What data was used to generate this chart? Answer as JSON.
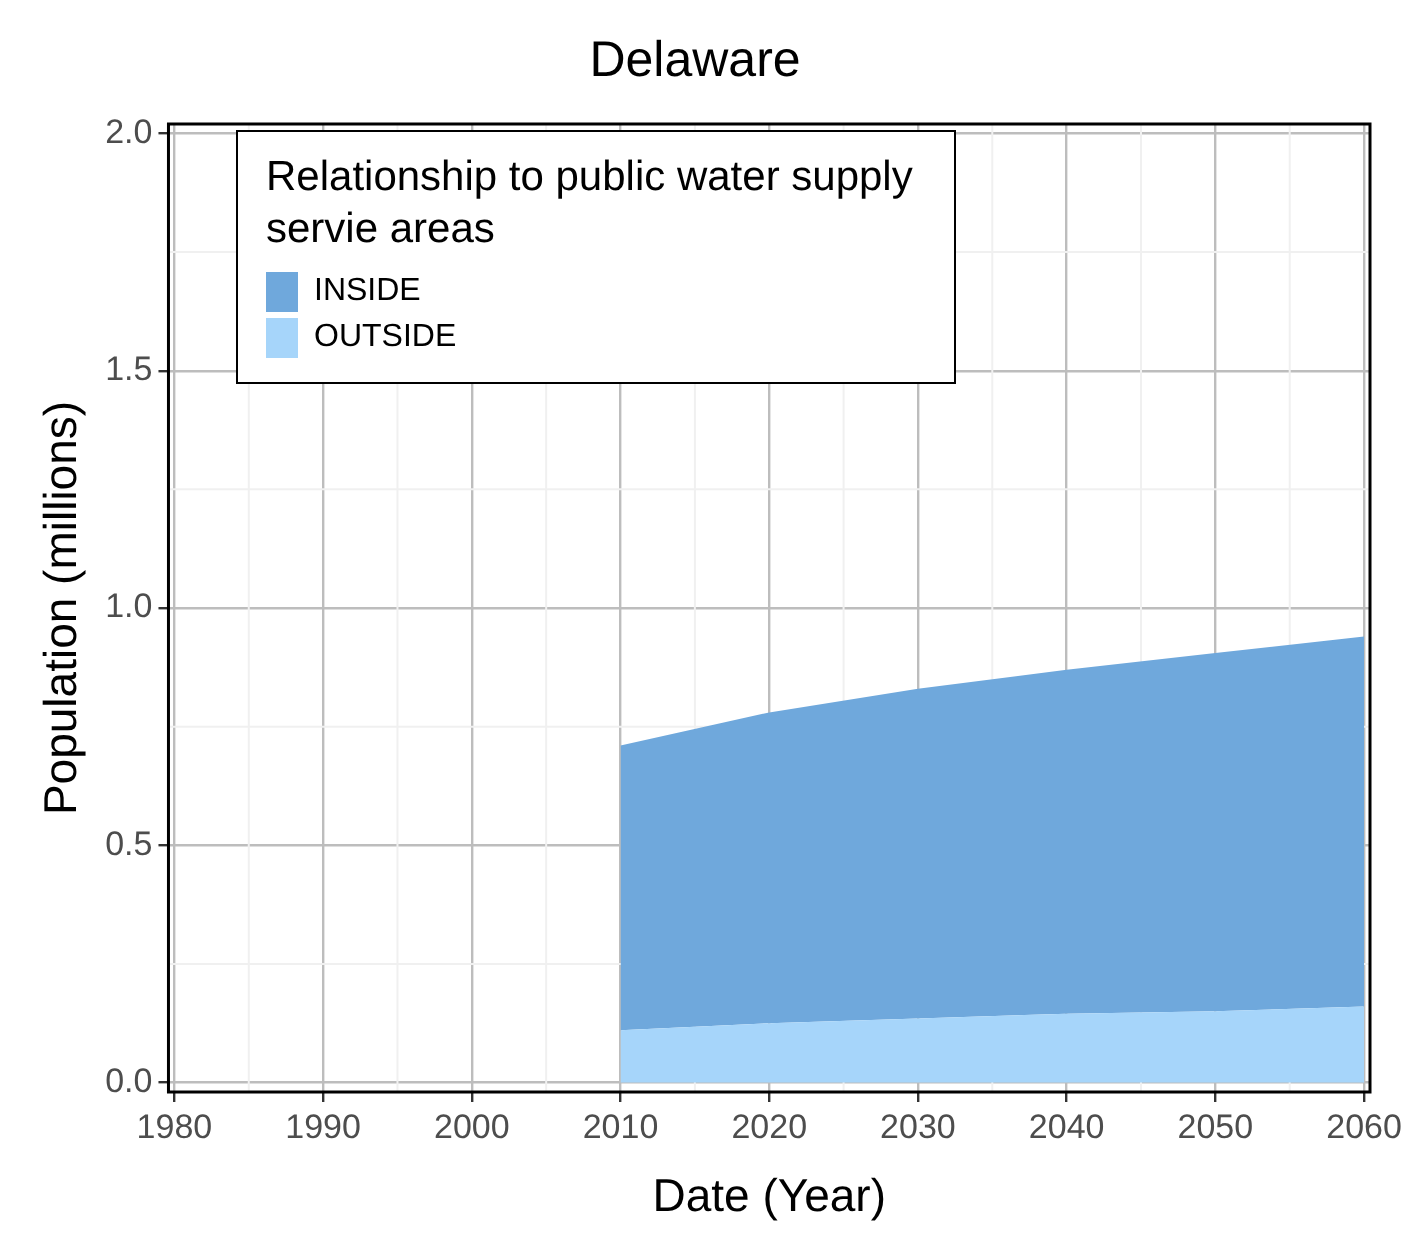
{
  "chart_data": {
    "type": "area",
    "title": "Delaware",
    "xlabel": "Date (Year)",
    "ylabel": "Population (millions)",
    "legend_title": "Relationship to public water supply servie areas",
    "stacked": true,
    "grid": true,
    "legend": "top left",
    "x": [
      2010,
      2020,
      2030,
      2040,
      2050,
      2060
    ],
    "series": [
      {
        "name": "OUTSIDE",
        "color": "#a6d5fa",
        "values": [
          0.11,
          0.125,
          0.135,
          0.145,
          0.15,
          0.16
        ]
      },
      {
        "name": "INSIDE",
        "color": "#6fa8dc",
        "values": [
          0.6,
          0.655,
          0.695,
          0.725,
          0.755,
          0.78
        ]
      }
    ],
    "xlim": [
      1979.6,
      2060.4
    ],
    "xticks": [
      1980,
      1990,
      2000,
      2010,
      2020,
      2030,
      2040,
      2050,
      2060
    ],
    "ylim": [
      -0.02,
      2.02
    ],
    "yticks": [
      {
        "value": 0,
        "label": "0.0"
      },
      {
        "value": 0.5,
        "label": "0.5"
      },
      {
        "value": 1,
        "label": "1.0"
      },
      {
        "value": 1.5,
        "label": "1.5"
      },
      {
        "value": 2,
        "label": "2.0"
      }
    ]
  }
}
